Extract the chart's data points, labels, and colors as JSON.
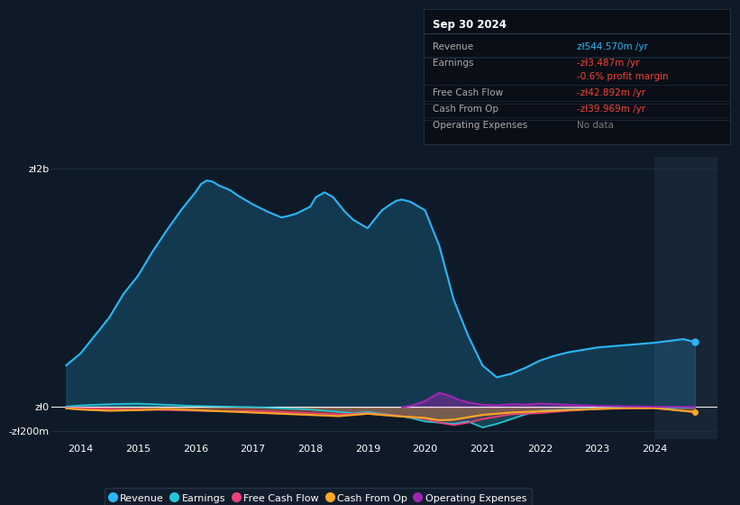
{
  "bg_color": "#0e1a27",
  "plot_bg_color": "#0e1a27",
  "x_labels": [
    "2014",
    "2015",
    "2016",
    "2017",
    "2018",
    "2019",
    "2020",
    "2021",
    "2022",
    "2023",
    "2024"
  ],
  "revenue_x": [
    2013.75,
    2014.0,
    2014.25,
    2014.5,
    2014.75,
    2015.0,
    2015.25,
    2015.5,
    2015.75,
    2016.0,
    2016.1,
    2016.2,
    2016.3,
    2016.4,
    2016.5,
    2016.6,
    2016.75,
    2017.0,
    2017.25,
    2017.5,
    2017.6,
    2017.75,
    2018.0,
    2018.1,
    2018.25,
    2018.4,
    2018.5,
    2018.6,
    2018.75,
    2019.0,
    2019.1,
    2019.25,
    2019.4,
    2019.5,
    2019.6,
    2019.75,
    2020.0,
    2020.25,
    2020.5,
    2020.75,
    2021.0,
    2021.25,
    2021.5,
    2021.75,
    2022.0,
    2022.25,
    2022.5,
    2022.75,
    2023.0,
    2023.25,
    2023.5,
    2023.75,
    2024.0,
    2024.25,
    2024.5,
    2024.7
  ],
  "revenue_y": [
    350,
    450,
    600,
    750,
    950,
    1100,
    1300,
    1480,
    1650,
    1800,
    1870,
    1900,
    1890,
    1860,
    1840,
    1820,
    1770,
    1700,
    1640,
    1590,
    1600,
    1620,
    1680,
    1760,
    1800,
    1760,
    1700,
    1640,
    1570,
    1500,
    1560,
    1650,
    1700,
    1730,
    1740,
    1720,
    1650,
    1350,
    900,
    600,
    350,
    250,
    280,
    330,
    390,
    430,
    460,
    480,
    500,
    510,
    520,
    530,
    540,
    555,
    570,
    545
  ],
  "earnings_x": [
    2013.75,
    2014.0,
    2014.5,
    2015.0,
    2015.5,
    2016.0,
    2016.5,
    2017.0,
    2017.5,
    2018.0,
    2018.25,
    2018.5,
    2018.75,
    2019.0,
    2019.25,
    2019.5,
    2019.75,
    2020.0,
    2020.25,
    2020.5,
    2020.75,
    2021.0,
    2021.25,
    2021.5,
    2021.75,
    2022.0,
    2022.5,
    2023.0,
    2023.5,
    2024.0,
    2024.5,
    2024.7
  ],
  "earnings_y": [
    5,
    15,
    25,
    30,
    20,
    10,
    5,
    0,
    -10,
    -20,
    -30,
    -40,
    -50,
    -40,
    -55,
    -70,
    -90,
    -120,
    -130,
    -140,
    -120,
    -170,
    -140,
    -100,
    -60,
    -30,
    -20,
    -10,
    -5,
    -5,
    -5,
    -3.5
  ],
  "fcf_x": [
    2013.75,
    2014.5,
    2015.0,
    2015.5,
    2016.0,
    2016.5,
    2017.0,
    2017.5,
    2018.0,
    2018.5,
    2019.0,
    2019.5,
    2020.0,
    2020.25,
    2020.5,
    2020.75,
    2021.0,
    2021.5,
    2022.0,
    2022.5,
    2023.0,
    2023.5,
    2024.0,
    2024.7
  ],
  "fcf_y": [
    -5,
    -15,
    -20,
    -25,
    -30,
    -35,
    -30,
    -40,
    -50,
    -60,
    -50,
    -70,
    -100,
    -130,
    -150,
    -130,
    -100,
    -60,
    -50,
    -30,
    -15,
    -10,
    -5,
    -43
  ],
  "cashop_x": [
    2013.75,
    2014.0,
    2014.5,
    2015.0,
    2015.5,
    2016.0,
    2016.5,
    2017.0,
    2017.5,
    2018.0,
    2018.5,
    2019.0,
    2019.5,
    2020.0,
    2020.25,
    2020.5,
    2020.75,
    2021.0,
    2021.5,
    2022.0,
    2022.5,
    2023.0,
    2023.5,
    2024.0,
    2024.7
  ],
  "cashop_y": [
    -10,
    -20,
    -30,
    -25,
    -15,
    -25,
    -35,
    -45,
    -55,
    -65,
    -75,
    -55,
    -75,
    -90,
    -110,
    -105,
    -85,
    -65,
    -45,
    -35,
    -25,
    -15,
    -8,
    -8,
    -40
  ],
  "opex_x": [
    2019.6,
    2019.75,
    2020.0,
    2020.1,
    2020.25,
    2020.4,
    2020.5,
    2020.6,
    2020.75,
    2021.0,
    2021.25,
    2021.5,
    2021.75,
    2022.0,
    2022.25,
    2022.5,
    2022.75,
    2023.0,
    2024.7
  ],
  "opex_y": [
    0,
    10,
    50,
    80,
    120,
    100,
    80,
    60,
    40,
    20,
    15,
    25,
    20,
    30,
    25,
    20,
    15,
    10,
    0
  ],
  "revenue_color": "#29b6f6",
  "earnings_color": "#26c6da",
  "fcf_color": "#ec407a",
  "cashop_color": "#ffa726",
  "opex_color": "#9c27b0",
  "info_box": {
    "date": "Sep 30 2024",
    "rows": [
      {
        "label": "Revenue",
        "value": "zł544.570m /yr",
        "value_color": "#29b6f6"
      },
      {
        "label": "Earnings",
        "value": "-zł3.487m /yr",
        "value_color": "#f44336"
      },
      {
        "label": "",
        "value": "-0.6% profit margin",
        "value_color": "#f44336"
      },
      {
        "label": "Free Cash Flow",
        "value": "-zł42.892m /yr",
        "value_color": "#f44336"
      },
      {
        "label": "Cash From Op",
        "value": "-zł39.969m /yr",
        "value_color": "#f44336"
      },
      {
        "label": "Operating Expenses",
        "value": "No data",
        "value_color": "#777777"
      }
    ]
  },
  "legend": [
    {
      "label": "Revenue",
      "color": "#29b6f6"
    },
    {
      "label": "Earnings",
      "color": "#26c6da"
    },
    {
      "label": "Free Cash Flow",
      "color": "#ec407a"
    },
    {
      "label": "Cash From Op",
      "color": "#ffa726"
    },
    {
      "label": "Operating Expenses",
      "color": "#9c27b0"
    }
  ],
  "xlim": [
    2013.5,
    2025.1
  ],
  "ylim": [
    -270,
    2100
  ],
  "ytick_vals": [
    -200,
    0,
    2000
  ],
  "ytick_labels": [
    "-zł200m",
    "zł0",
    "zł2b"
  ],
  "grid_color": "#1e2e3e",
  "highlight_xmin": 2024.0,
  "highlight_xmax": 2025.1
}
